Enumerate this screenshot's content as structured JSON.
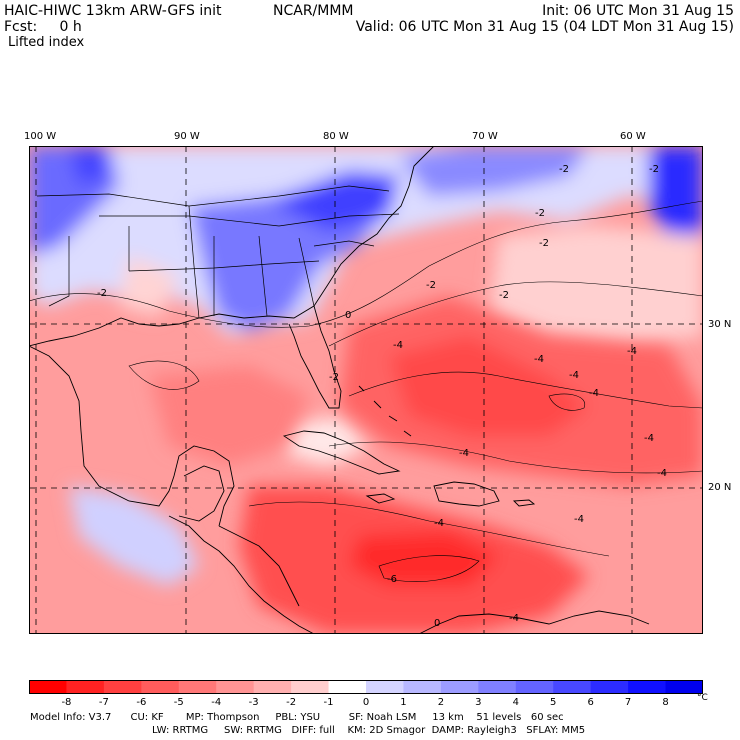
{
  "header": {
    "model_title": "HAIC-HIWC 13km ARW-GFS init",
    "org": "NCAR/MMM",
    "forecast": "Fcst:     0 h",
    "field": "Lifted index",
    "init": "Init: 06 UTC Mon 31 Aug 15",
    "valid": "Valid: 06 UTC Mon 31 Aug 15 (04 LDT Mon 31 Aug 15)"
  },
  "axes": {
    "longitudes": [
      "100 W",
      "90 W",
      "80 W",
      "70 W",
      "60 W"
    ],
    "latitudes": [
      "30 N",
      "20 N"
    ]
  },
  "contour_labels": [
    "-2",
    "-2",
    "-2",
    "-2",
    "-2",
    "-2",
    "-2",
    "-2",
    "-4",
    "-4",
    "-4",
    "-4",
    "-4",
    "-4",
    "-4",
    "-4",
    "-4",
    "-4",
    "-4",
    "-6",
    "0",
    "0"
  ],
  "colorbar": {
    "ticks": [
      "-8",
      "-7",
      "-6",
      "-5",
      "-4",
      "-3",
      "-2",
      "-1",
      "0",
      "1",
      "2",
      "3",
      "4",
      "5",
      "6",
      "7",
      "8"
    ],
    "unit": "°C",
    "colors": [
      "#ff0000",
      "#ff2222",
      "#ff4040",
      "#ff5c5c",
      "#ff7878",
      "#ff9494",
      "#ffb0b0",
      "#ffcece",
      "#ffffff",
      "#d4d4ff",
      "#b8b8ff",
      "#9c9cff",
      "#8080ff",
      "#6464ff",
      "#4848ff",
      "#2c2cff",
      "#1010ff",
      "#0000ee"
    ]
  },
  "model_info": {
    "line1": "Model Info: V3.7      CU: KF       MP: Thompson     PBL: YSU         SF: Noah LSM     13 km    51 levels   60 sec",
    "line2": "LW: RRTMG     SW: RRTMG   DIFF: full    KM: 2D Smagor  DAMP: Rayleigh3   SFLAY: MM5"
  }
}
